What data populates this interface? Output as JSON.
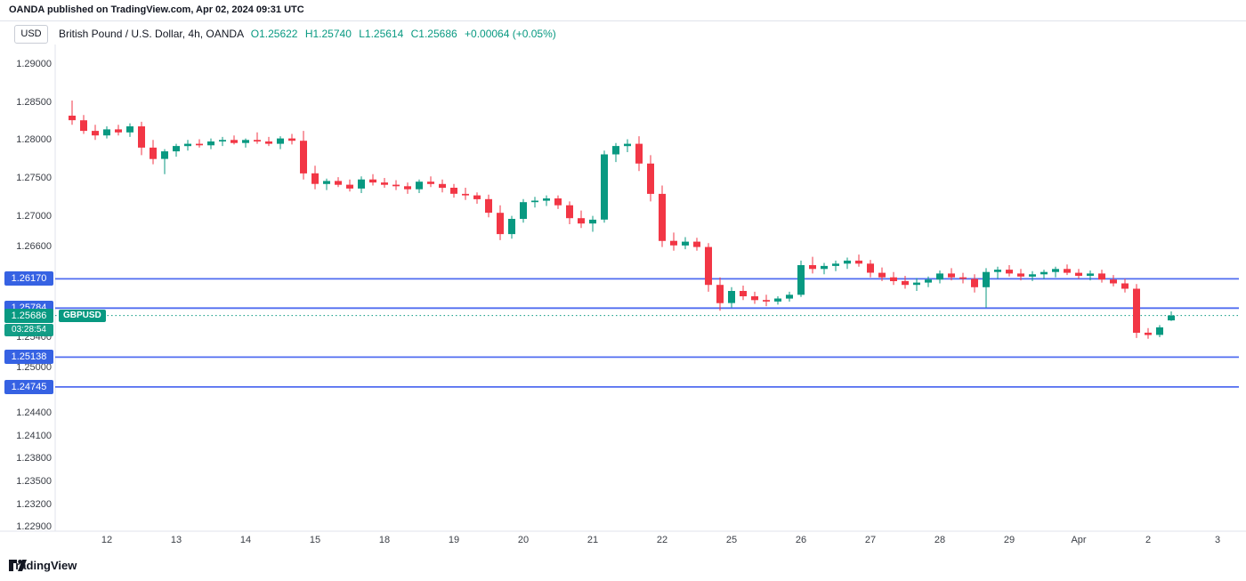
{
  "header": {
    "attribution": "OANDA published on TradingView.com, Apr 02, 2024 09:31 UTC"
  },
  "toolbar": {
    "currency_button": "USD"
  },
  "legend": {
    "symbol": "British Pound / U.S. Dollar, 4h, OANDA",
    "o": "O1.25622",
    "h": "H1.25740",
    "l": "L1.25614",
    "c": "C1.25686",
    "change": "+0.00064 (+0.05%)"
  },
  "colors": {
    "up": "#089981",
    "down": "#F23645",
    "level_line": "#506CF0",
    "badge_blue": "#3662E3",
    "current_badge": "#089981",
    "divider": "#E0E3EB",
    "axis_text": "#3A3E46"
  },
  "price_scale": {
    "labels": [
      {
        "text": "1.29000",
        "price": 1.29
      },
      {
        "text": "1.28500",
        "price": 1.285
      },
      {
        "text": "1.28000",
        "price": 1.28
      },
      {
        "text": "1.27500",
        "price": 1.275
      },
      {
        "text": "1.27000",
        "price": 1.27
      },
      {
        "text": "1.26600",
        "price": 1.266
      },
      {
        "text": "1.25400",
        "price": 1.254
      },
      {
        "text": "1.25000",
        "price": 1.25
      },
      {
        "text": "1.24400",
        "price": 1.244
      },
      {
        "text": "1.24100",
        "price": 1.241
      },
      {
        "text": "1.23800",
        "price": 1.238
      },
      {
        "text": "1.23500",
        "price": 1.235
      },
      {
        "text": "1.23200",
        "price": 1.232
      },
      {
        "text": "1.22900",
        "price": 1.229
      }
    ],
    "level_badges": [
      {
        "text": "1.26170",
        "price": 1.2617
      },
      {
        "text": "1.25784",
        "price": 1.25784
      },
      {
        "text": "1.25138",
        "price": 1.25138
      },
      {
        "text": "1.24745",
        "price": 1.24745
      }
    ],
    "current": {
      "price_text": "1.25686",
      "price": 1.25686,
      "countdown": "03:28:54",
      "symbol_tag": "GBPUSD"
    }
  },
  "time_scale": {
    "labels": [
      {
        "text": "12",
        "index": 3
      },
      {
        "text": "13",
        "index": 9
      },
      {
        "text": "14",
        "index": 15
      },
      {
        "text": "15",
        "index": 21
      },
      {
        "text": "18",
        "index": 27
      },
      {
        "text": "19",
        "index": 33
      },
      {
        "text": "20",
        "index": 39
      },
      {
        "text": "21",
        "index": 45
      },
      {
        "text": "22",
        "index": 51
      },
      {
        "text": "25",
        "index": 57
      },
      {
        "text": "26",
        "index": 63
      },
      {
        "text": "27",
        "index": 69
      },
      {
        "text": "28",
        "index": 75
      },
      {
        "text": "29",
        "index": 81
      },
      {
        "text": "Apr",
        "index": 87
      },
      {
        "text": "2",
        "index": 93
      },
      {
        "text": "3",
        "index": 99
      }
    ]
  },
  "footer": {
    "brand": "TradingView"
  },
  "chart_data": {
    "type": "candlestick",
    "title": "British Pound / U.S. Dollar, 4h, OANDA",
    "y_range": [
      1.2275,
      1.292
    ],
    "levels": [
      1.2617,
      1.25784,
      1.25138,
      1.24745
    ],
    "current_price": 1.25686,
    "ohlc": [
      [
        1.2832,
        1.2852,
        1.282,
        1.2826
      ],
      [
        1.2826,
        1.2833,
        1.2808,
        1.2812
      ],
      [
        1.2812,
        1.282,
        1.28,
        1.2806
      ],
      [
        1.2806,
        1.2818,
        1.2802,
        1.2814
      ],
      [
        1.2814,
        1.282,
        1.2806,
        1.281
      ],
      [
        1.281,
        1.2822,
        1.2804,
        1.2818
      ],
      [
        1.2818,
        1.2824,
        1.278,
        1.279
      ],
      [
        1.279,
        1.28,
        1.2768,
        1.2775
      ],
      [
        1.2775,
        1.2788,
        1.2755,
        1.2785
      ],
      [
        1.2785,
        1.2795,
        1.2778,
        1.2792
      ],
      [
        1.2792,
        1.28,
        1.2786,
        1.2795
      ],
      [
        1.2795,
        1.2801,
        1.279,
        1.2793
      ],
      [
        1.2793,
        1.2802,
        1.2788,
        1.2798
      ],
      [
        1.2798,
        1.2804,
        1.2792,
        1.28
      ],
      [
        1.28,
        1.2806,
        1.2794,
        1.2796
      ],
      [
        1.2796,
        1.2802,
        1.279,
        1.28
      ],
      [
        1.28,
        1.281,
        1.2795,
        1.2798
      ],
      [
        1.2798,
        1.2804,
        1.2792,
        1.2795
      ],
      [
        1.2795,
        1.2805,
        1.2788,
        1.2802
      ],
      [
        1.2802,
        1.2808,
        1.2794,
        1.2799
      ],
      [
        1.2799,
        1.2812,
        1.2748,
        1.2756
      ],
      [
        1.2756,
        1.2766,
        1.2735,
        1.2742
      ],
      [
        1.2742,
        1.2749,
        1.2734,
        1.2746
      ],
      [
        1.2746,
        1.2751,
        1.2738,
        1.2741
      ],
      [
        1.2741,
        1.2748,
        1.2732,
        1.2736
      ],
      [
        1.2736,
        1.2752,
        1.273,
        1.2748
      ],
      [
        1.2748,
        1.2755,
        1.274,
        1.2744
      ],
      [
        1.2744,
        1.275,
        1.2737,
        1.2741
      ],
      [
        1.2741,
        1.2747,
        1.2734,
        1.2739
      ],
      [
        1.2739,
        1.2744,
        1.2729,
        1.2735
      ],
      [
        1.2735,
        1.2748,
        1.273,
        1.2745
      ],
      [
        1.2745,
        1.2752,
        1.2738,
        1.2742
      ],
      [
        1.2742,
        1.2748,
        1.2731,
        1.2737
      ],
      [
        1.2737,
        1.2742,
        1.2724,
        1.2729
      ],
      [
        1.2729,
        1.2737,
        1.2721,
        1.2727
      ],
      [
        1.2727,
        1.2731,
        1.2716,
        1.2722
      ],
      [
        1.2722,
        1.2728,
        1.2698,
        1.2704
      ],
      [
        1.2704,
        1.2714,
        1.2668,
        1.2676
      ],
      [
        1.2676,
        1.27,
        1.267,
        1.2696
      ],
      [
        1.2696,
        1.2722,
        1.2691,
        1.2718
      ],
      [
        1.2718,
        1.2725,
        1.2711,
        1.272
      ],
      [
        1.272,
        1.2727,
        1.2713,
        1.2723
      ],
      [
        1.2723,
        1.2727,
        1.2709,
        1.2714
      ],
      [
        1.2714,
        1.2719,
        1.2689,
        1.2697
      ],
      [
        1.2697,
        1.2707,
        1.2684,
        1.269
      ],
      [
        1.269,
        1.27,
        1.2679,
        1.2695
      ],
      [
        1.2695,
        1.2786,
        1.2691,
        1.2781
      ],
      [
        1.2781,
        1.2796,
        1.2771,
        1.2792
      ],
      [
        1.2792,
        1.2801,
        1.2784,
        1.2795
      ],
      [
        1.2795,
        1.2805,
        1.2759,
        1.2769
      ],
      [
        1.2769,
        1.278,
        1.2719,
        1.2729
      ],
      [
        1.2729,
        1.274,
        1.2659,
        1.2667
      ],
      [
        1.2667,
        1.2678,
        1.2654,
        1.2661
      ],
      [
        1.2661,
        1.2672,
        1.2656,
        1.2666
      ],
      [
        1.2666,
        1.2671,
        1.2654,
        1.2659
      ],
      [
        1.2659,
        1.2664,
        1.26,
        1.2609
      ],
      [
        1.2609,
        1.2619,
        1.2575,
        1.2585
      ],
      [
        1.2585,
        1.2606,
        1.2579,
        1.2601
      ],
      [
        1.2601,
        1.2608,
        1.2589,
        1.2594
      ],
      [
        1.2594,
        1.26,
        1.2584,
        1.2589
      ],
      [
        1.2589,
        1.2596,
        1.2581,
        1.2587
      ],
      [
        1.2587,
        1.2594,
        1.2583,
        1.2591
      ],
      [
        1.2591,
        1.26,
        1.2587,
        1.2596
      ],
      [
        1.2596,
        1.2641,
        1.2593,
        1.2635
      ],
      [
        1.2635,
        1.2646,
        1.2624,
        1.263
      ],
      [
        1.263,
        1.2638,
        1.2623,
        1.2634
      ],
      [
        1.2634,
        1.2641,
        1.2627,
        1.2637
      ],
      [
        1.2637,
        1.2645,
        1.263,
        1.2641
      ],
      [
        1.2641,
        1.2649,
        1.2633,
        1.2637
      ],
      [
        1.2637,
        1.2642,
        1.2619,
        1.2625
      ],
      [
        1.2625,
        1.2632,
        1.2614,
        1.2619
      ],
      [
        1.2619,
        1.2626,
        1.2609,
        1.2614
      ],
      [
        1.2614,
        1.2621,
        1.2604,
        1.2609
      ],
      [
        1.2609,
        1.2618,
        1.2601,
        1.2612
      ],
      [
        1.2612,
        1.262,
        1.2606,
        1.2616
      ],
      [
        1.2616,
        1.2628,
        1.2611,
        1.2624
      ],
      [
        1.2624,
        1.2631,
        1.2615,
        1.2619
      ],
      [
        1.2619,
        1.2625,
        1.2611,
        1.2617
      ],
      [
        1.2617,
        1.2623,
        1.2599,
        1.2606
      ],
      [
        1.2606,
        1.2631,
        1.2579,
        1.2626
      ],
      [
        1.2626,
        1.2633,
        1.2617,
        1.2629
      ],
      [
        1.2629,
        1.2635,
        1.262,
        1.2624
      ],
      [
        1.2624,
        1.263,
        1.2615,
        1.262
      ],
      [
        1.262,
        1.2627,
        1.2614,
        1.2623
      ],
      [
        1.2623,
        1.2629,
        1.2617,
        1.2626
      ],
      [
        1.2626,
        1.2633,
        1.2619,
        1.263
      ],
      [
        1.263,
        1.2636,
        1.2622,
        1.2625
      ],
      [
        1.2625,
        1.263,
        1.2617,
        1.2621
      ],
      [
        1.2621,
        1.2628,
        1.2615,
        1.2624
      ],
      [
        1.2624,
        1.2629,
        1.2612,
        1.2616
      ],
      [
        1.2616,
        1.2622,
        1.2607,
        1.2611
      ],
      [
        1.2611,
        1.2617,
        1.2599,
        1.2604
      ],
      [
        1.2604,
        1.261,
        1.2539,
        1.2546
      ],
      [
        1.2546,
        1.2552,
        1.2538,
        1.2543
      ],
      [
        1.2543,
        1.2556,
        1.254,
        1.2553
      ],
      [
        1.25622,
        1.2574,
        1.25614,
        1.25686
      ]
    ]
  }
}
